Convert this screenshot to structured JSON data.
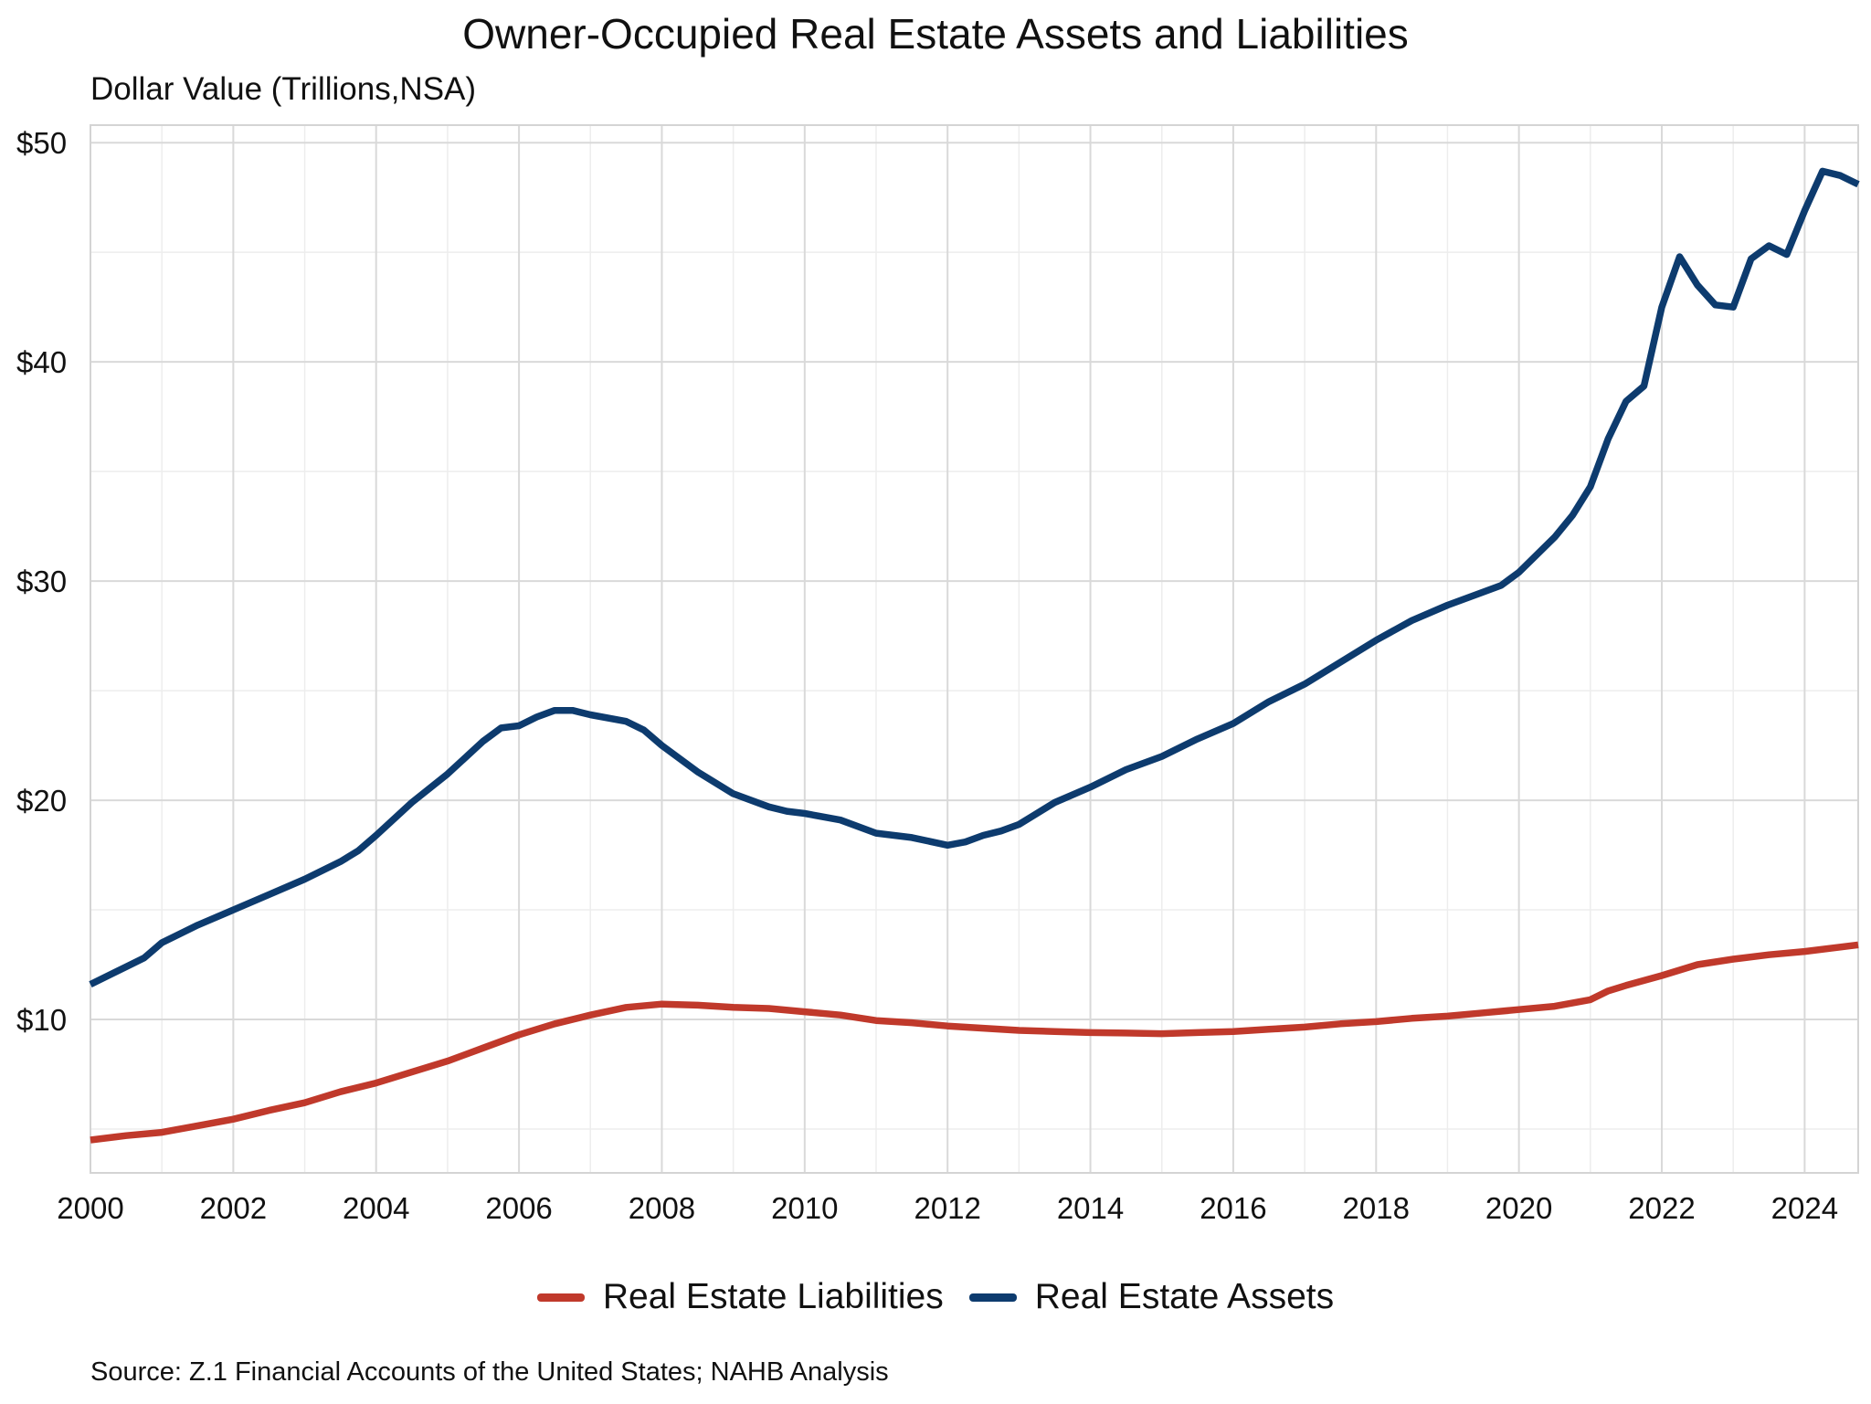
{
  "chart_data": {
    "type": "line",
    "title": "Owner-Occupied Real Estate Assets and Liabilities",
    "subtitle": "Dollar Value (Trillions,NSA)",
    "source": "Source: Z.1 Financial Accounts of the United States; NAHB Analysis",
    "xlim": [
      2000,
      2024.75
    ],
    "ylim": [
      3.0,
      50.8
    ],
    "x_ticks": [
      2000,
      2002,
      2004,
      2006,
      2008,
      2010,
      2012,
      2014,
      2016,
      2018,
      2020,
      2022,
      2024
    ],
    "x_tick_labels": [
      "2000",
      "2002",
      "2004",
      "2006",
      "2008",
      "2010",
      "2012",
      "2014",
      "2016",
      "2018",
      "2020",
      "2022",
      "2024"
    ],
    "y_ticks": [
      10,
      20,
      30,
      40,
      50
    ],
    "y_tick_labels": [
      "$10",
      "$20",
      "$30",
      "$40",
      "$50"
    ],
    "grid": true,
    "legend_position": "bottom",
    "series": [
      {
        "name": "Real Estate Liabilities",
        "color": "#c0392b",
        "x": [
          2000.0,
          2000.5,
          2001.0,
          2001.5,
          2002.0,
          2002.5,
          2003.0,
          2003.5,
          2004.0,
          2004.5,
          2005.0,
          2005.5,
          2006.0,
          2006.5,
          2007.0,
          2007.5,
          2008.0,
          2008.5,
          2009.0,
          2009.5,
          2010.0,
          2010.5,
          2011.0,
          2011.5,
          2012.0,
          2012.5,
          2013.0,
          2013.5,
          2014.0,
          2014.5,
          2015.0,
          2015.5,
          2016.0,
          2016.5,
          2017.0,
          2017.5,
          2018.0,
          2018.5,
          2019.0,
          2019.5,
          2020.0,
          2020.5,
          2021.0,
          2021.25,
          2021.5,
          2022.0,
          2022.5,
          2023.0,
          2023.5,
          2024.0,
          2024.75
        ],
        "y": [
          4.5,
          4.7,
          4.85,
          5.15,
          5.45,
          5.85,
          6.2,
          6.7,
          7.1,
          7.6,
          8.1,
          8.7,
          9.3,
          9.8,
          10.2,
          10.55,
          10.7,
          10.65,
          10.55,
          10.5,
          10.35,
          10.2,
          9.95,
          9.85,
          9.7,
          9.6,
          9.5,
          9.45,
          9.4,
          9.38,
          9.35,
          9.4,
          9.45,
          9.55,
          9.65,
          9.8,
          9.9,
          10.05,
          10.15,
          10.3,
          10.45,
          10.6,
          10.9,
          11.3,
          11.55,
          12.0,
          12.5,
          12.75,
          12.95,
          13.1,
          13.4
        ]
      },
      {
        "name": "Real Estate Assets",
        "color": "#0d3b6e",
        "x": [
          2000.0,
          2000.5,
          2000.75,
          2001.0,
          2001.5,
          2002.0,
          2002.5,
          2003.0,
          2003.5,
          2003.75,
          2004.0,
          2004.5,
          2005.0,
          2005.5,
          2005.75,
          2006.0,
          2006.25,
          2006.5,
          2006.75,
          2007.0,
          2007.5,
          2007.75,
          2008.0,
          2008.5,
          2009.0,
          2009.5,
          2009.75,
          2010.0,
          2010.5,
          2011.0,
          2011.5,
          2012.0,
          2012.25,
          2012.5,
          2012.75,
          2013.0,
          2013.5,
          2014.0,
          2014.5,
          2015.0,
          2015.5,
          2016.0,
          2016.5,
          2017.0,
          2017.5,
          2018.0,
          2018.5,
          2019.0,
          2019.5,
          2019.75,
          2020.0,
          2020.5,
          2020.75,
          2021.0,
          2021.25,
          2021.5,
          2021.75,
          2022.0,
          2022.25,
          2022.5,
          2022.75,
          2023.0,
          2023.25,
          2023.5,
          2023.75,
          2024.0,
          2024.25,
          2024.5,
          2024.75
        ],
        "y": [
          11.6,
          12.4,
          12.8,
          13.5,
          14.3,
          15.0,
          15.7,
          16.4,
          17.2,
          17.7,
          18.4,
          19.9,
          21.2,
          22.7,
          23.3,
          23.4,
          23.8,
          24.1,
          24.1,
          23.9,
          23.6,
          23.2,
          22.5,
          21.3,
          20.3,
          19.7,
          19.5,
          19.4,
          19.1,
          18.5,
          18.3,
          17.95,
          18.1,
          18.4,
          18.6,
          18.9,
          19.9,
          20.6,
          21.4,
          22.0,
          22.8,
          23.5,
          24.5,
          25.3,
          26.3,
          27.3,
          28.2,
          28.9,
          29.5,
          29.8,
          30.4,
          32.0,
          33.0,
          34.3,
          36.5,
          38.2,
          38.9,
          42.5,
          44.8,
          43.5,
          42.6,
          42.5,
          44.7,
          45.3,
          44.9,
          46.9,
          48.7,
          48.5,
          48.1
        ]
      }
    ]
  }
}
